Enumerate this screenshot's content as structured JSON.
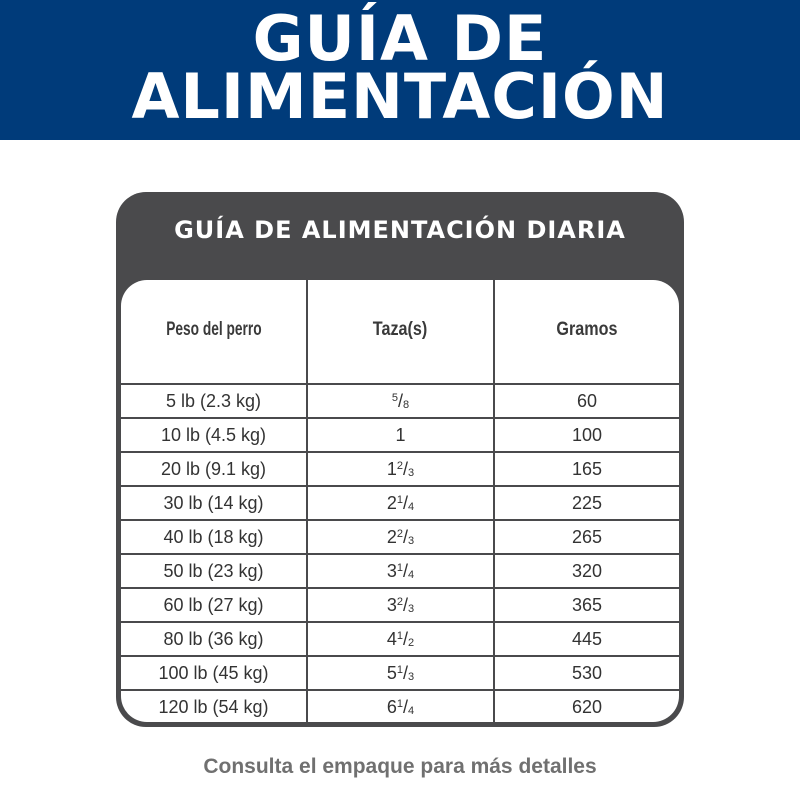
{
  "banner": {
    "line1": "GUÍA DE",
    "line2": "ALIMENTACIÓN",
    "color": "#003b7a"
  },
  "table": {
    "title": "GUÍA DE ALIMENTACIÓN DIARIA",
    "headers": [
      "Peso del perro",
      "Taza(s)",
      "Gramos"
    ],
    "rows": [
      {
        "weight": "5 lb (2.3 kg)",
        "cups": {
          "whole": "",
          "num": "5",
          "den": "8"
        },
        "grams": "60"
      },
      {
        "weight": "10 lb (4.5 kg)",
        "cups": {
          "whole": "1",
          "num": "",
          "den": ""
        },
        "grams": "100"
      },
      {
        "weight": "20 lb (9.1 kg)",
        "cups": {
          "whole": "1",
          "num": "2",
          "den": "3"
        },
        "grams": "165"
      },
      {
        "weight": "30 lb (14 kg)",
        "cups": {
          "whole": "2",
          "num": "1",
          "den": "4"
        },
        "grams": "225"
      },
      {
        "weight": "40 lb (18 kg)",
        "cups": {
          "whole": "2",
          "num": "2",
          "den": "3"
        },
        "grams": "265"
      },
      {
        "weight": "50 lb (23 kg)",
        "cups": {
          "whole": "3",
          "num": "1",
          "den": "4"
        },
        "grams": "320"
      },
      {
        "weight": "60 lb (27 kg)",
        "cups": {
          "whole": "3",
          "num": "2",
          "den": "3"
        },
        "grams": "365"
      },
      {
        "weight": "80 lb (36 kg)",
        "cups": {
          "whole": "4",
          "num": "1",
          "den": "2"
        },
        "grams": "445"
      },
      {
        "weight": "100 lb (45 kg)",
        "cups": {
          "whole": "5",
          "num": "1",
          "den": "3"
        },
        "grams": "530"
      },
      {
        "weight": "120 lb (54 kg)",
        "cups": {
          "whole": "6",
          "num": "1",
          "den": "4"
        },
        "grams": "620"
      }
    ]
  },
  "footer": "Consulta el empaque para más detalles"
}
